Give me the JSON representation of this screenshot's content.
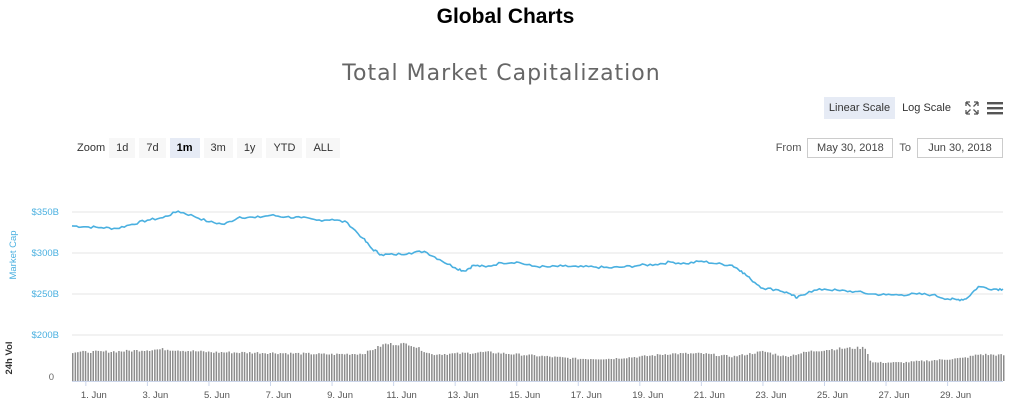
{
  "page": {
    "title": "Global Charts"
  },
  "toolbar": {
    "linear_scale": "Linear Scale",
    "log_scale": "Log Scale",
    "fullscreen_icon": "fullscreen-icon",
    "menu_icon": "hamburger-menu-icon"
  },
  "zoom": {
    "label": "Zoom",
    "buttons": [
      "1d",
      "7d",
      "1m",
      "3m",
      "1y",
      "YTD",
      "ALL"
    ],
    "selected": "1m"
  },
  "range": {
    "from_label": "From",
    "from_value": "May 30, 2018",
    "to_label": "To",
    "to_value": "Jun 30, 2018"
  },
  "colors": {
    "series": "#4ab0e0",
    "volume": "#8c8c8c",
    "axis_label": "#4ab0e0",
    "grid": "#e6e6e6"
  },
  "chart_data": {
    "type": "line",
    "title": "Total Market Capitalization",
    "ylabel": "Market Cap",
    "y2label": "24h Vol",
    "ylim": [
      200,
      350
    ],
    "y_ticks": [
      "$200B",
      "$250B",
      "$300B",
      "$350B"
    ],
    "y_tick_values": [
      200,
      250,
      300,
      350
    ],
    "vol_ticks": [
      "0"
    ],
    "x_ticks": [
      "1. Jun",
      "3. Jun",
      "5. Jun",
      "7. Jun",
      "9. Jun",
      "11. Jun",
      "13. Jun",
      "15. Jun",
      "17. Jun",
      "19. Jun",
      "21. Jun",
      "23. Jun",
      "25. Jun",
      "27. Jun",
      "29. Jun"
    ],
    "x_tick_days": [
      1,
      3,
      5,
      7,
      9,
      11,
      13,
      15,
      17,
      19,
      21,
      23,
      25,
      27,
      29
    ],
    "xlim_days": [
      0.55,
      30.8
    ],
    "grid": true,
    "series": [
      {
        "name": "Market Cap",
        "unit": "$B",
        "x_days": [
          0.55,
          1.0,
          1.5,
          2.0,
          2.5,
          3.0,
          3.5,
          4.0,
          4.5,
          5.0,
          5.5,
          6.0,
          6.5,
          7.0,
          7.5,
          8.0,
          8.5,
          9.0,
          9.5,
          10.0,
          10.3,
          10.6,
          11.0,
          11.5,
          12.0,
          12.5,
          13.0,
          13.3,
          13.6,
          14.0,
          14.5,
          15.0,
          15.5,
          16.0,
          16.5,
          17.0,
          17.5,
          18.0,
          18.5,
          19.0,
          19.5,
          20.0,
          20.5,
          21.0,
          21.5,
          22.0,
          22.3,
          22.6,
          23.0,
          23.5,
          23.9,
          24.1,
          24.5,
          25.0,
          25.5,
          26.0,
          26.5,
          27.0,
          27.5,
          28.0,
          28.5,
          29.0,
          29.3,
          29.6,
          30.0,
          30.5,
          30.8
        ],
        "values": [
          333,
          332,
          331,
          330,
          335,
          340,
          343,
          351,
          345,
          338,
          335,
          344,
          343,
          346,
          344,
          343,
          340,
          341,
          337,
          318,
          305,
          298,
          298,
          300,
          302,
          292,
          282,
          278,
          285,
          283,
          288,
          289,
          284,
          283,
          284,
          283,
          283,
          282,
          283,
          285,
          286,
          289,
          287,
          290,
          287,
          285,
          278,
          268,
          257,
          255,
          250,
          245,
          253,
          256,
          254,
          253,
          250,
          249,
          249,
          250,
          249,
          244,
          243,
          244,
          259,
          256,
          256
        ]
      },
      {
        "name": "24h Vol",
        "x_days": [
          0.55,
          2.0,
          3.5,
          5.0,
          7.0,
          9.0,
          10.0,
          10.7,
          11.5,
          12.2,
          13.0,
          14.0,
          15.0,
          16.0,
          17.0,
          18.0,
          19.0,
          20.0,
          21.0,
          22.0,
          23.0,
          23.7,
          24.5,
          25.5,
          26.3,
          26.5,
          27.5,
          28.5,
          29.5,
          30.0,
          30.8
        ],
        "values": [
          0.78,
          0.8,
          0.86,
          0.78,
          0.76,
          0.72,
          0.74,
          1.0,
          1.0,
          0.72,
          0.74,
          0.78,
          0.72,
          0.66,
          0.6,
          0.6,
          0.66,
          0.74,
          0.74,
          0.66,
          0.8,
          0.66,
          0.8,
          0.88,
          0.9,
          0.5,
          0.5,
          0.56,
          0.62,
          0.72,
          0.7
        ]
      }
    ]
  }
}
